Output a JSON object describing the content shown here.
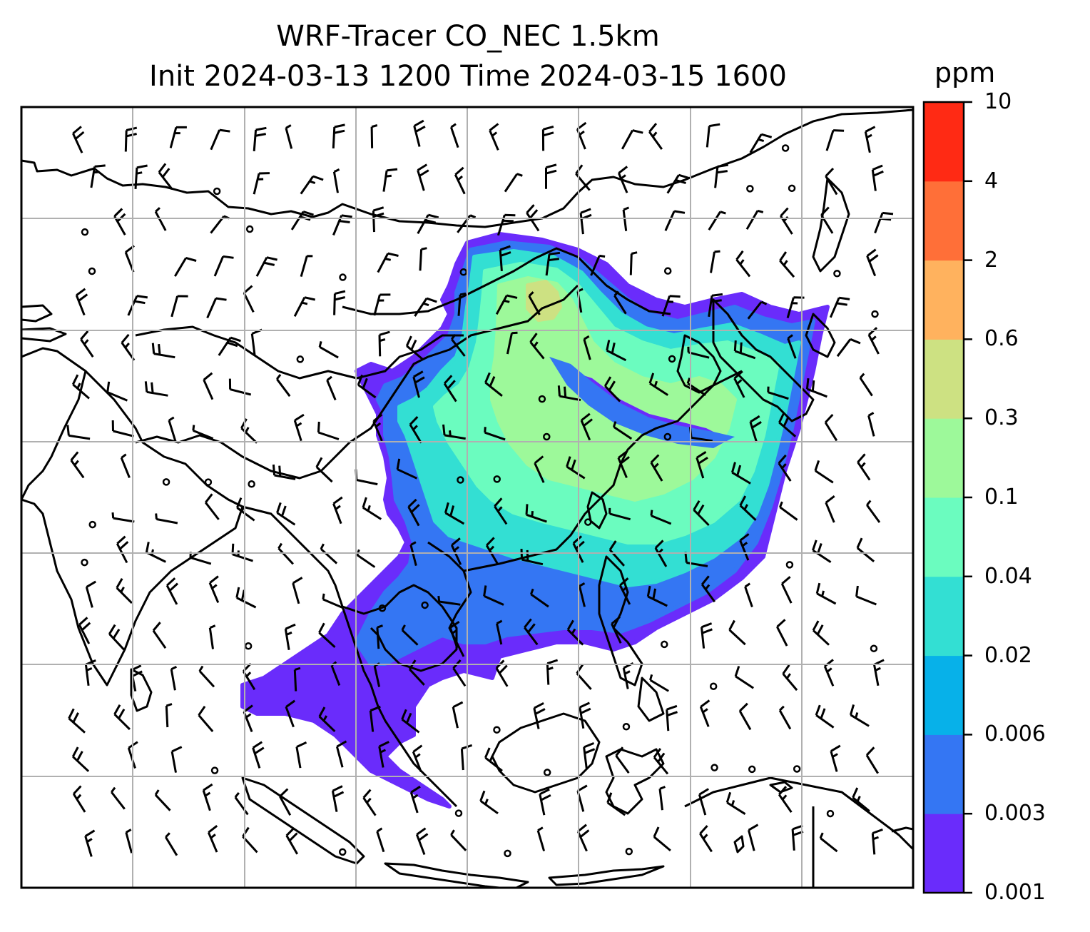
{
  "title": {
    "line1": "WRF-Tracer CO_NEC 1.5km",
    "line2": "Init 2024-03-13 1200 Time 2024-03-15 1600"
  },
  "colorbar": {
    "unit": "ppm",
    "ticks": [
      "0.001",
      "0.003",
      "0.006",
      "0.02",
      "0.04",
      "0.1",
      "0.3",
      "0.6",
      "2",
      "4",
      "10"
    ],
    "colors": [
      "#6a2cfb",
      "#3476f3",
      "#07b1e9",
      "#33dfd3",
      "#6bfcbf",
      "#9df99a",
      "#cde182",
      "#ffb25e",
      "#ff6f38",
      "#ff2a14"
    ]
  },
  "map": {
    "field": "CO_NEC tracer concentration",
    "land_outline_color": "#000000",
    "grid_color": "#b0b0b0",
    "wind_barbs": true
  }
}
